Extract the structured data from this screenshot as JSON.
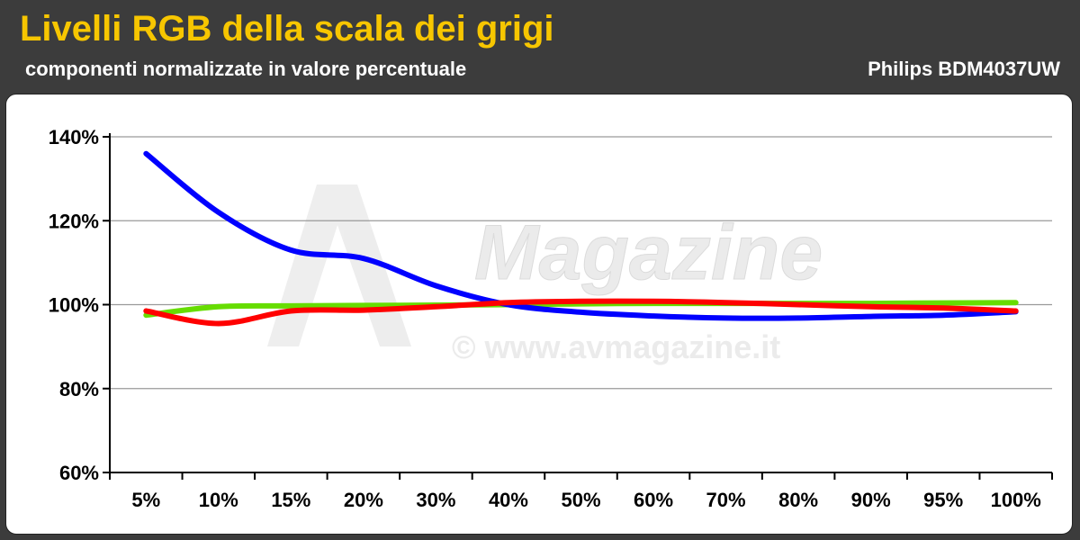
{
  "header": {
    "title": "Livelli RGB della scala dei grigi",
    "subtitle": "componenti normalizzate in valore percentuale",
    "brand": "Philips BDM4037UW"
  },
  "watermark": {
    "logo": "Magazine",
    "url": "© www.avmagazine.it"
  },
  "colors": {
    "title": "#f7c600",
    "background": "#3c3c3c",
    "red": "#ff0000",
    "green": "#66dd00",
    "blue": "#0000ff"
  },
  "chart_data": {
    "type": "line",
    "title": "Livelli RGB della scala dei grigi",
    "subtitle": "componenti normalizzate in valore percentuale",
    "categories": [
      "5%",
      "10%",
      "15%",
      "20%",
      "30%",
      "40%",
      "50%",
      "60%",
      "70%",
      "80%",
      "90%",
      "95%",
      "100%"
    ],
    "y_ticks": [
      "140%",
      "120%",
      "100%",
      "80%",
      "60%"
    ],
    "ylim": [
      60,
      140
    ],
    "grid": true,
    "series": [
      {
        "color": "#66dd00",
        "values": [
          97.5,
          99.5,
          99.7,
          99.8,
          99.9,
          100.0,
          100.2,
          100.3,
          100.3,
          100.3,
          100.3,
          100.4,
          100.5
        ]
      },
      {
        "color": "#0000ff",
        "values": [
          136,
          122,
          113,
          111,
          104.5,
          100,
          98.2,
          97.3,
          96.8,
          96.8,
          97.2,
          97.5,
          98.3
        ]
      },
      {
        "color": "#ff0000",
        "values": [
          98.5,
          95.5,
          98.5,
          98.7,
          99.5,
          100.5,
          100.8,
          100.8,
          100.5,
          100.0,
          99.5,
          99.2,
          98.5
        ]
      }
    ]
  }
}
